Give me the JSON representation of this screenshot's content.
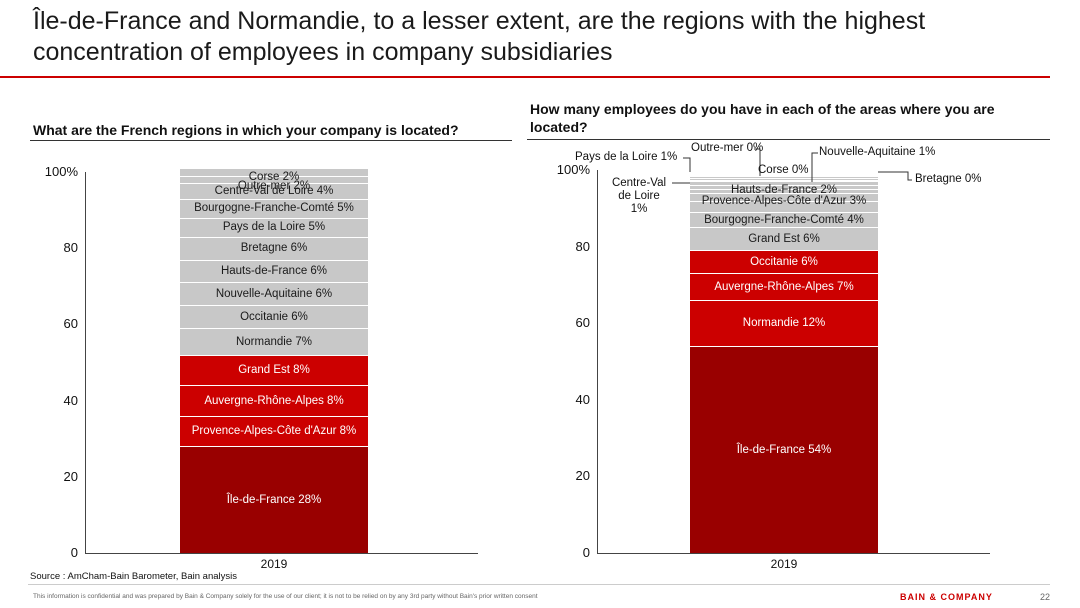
{
  "title": "Île-de-France and Normandie, to a lesser extent, are the regions with the highest concentration of employees in company subsidiaries",
  "left_question": "What are the French regions in which your company is located?",
  "right_question": "How many employees do you have in each of the areas where you are located?",
  "source": "Source : AmCham-Bain Barometer, Bain analysis",
  "disclaimer": "This information is confidential and was prepared by Bain & Company solely for the use of our client; it is not to be relied on by any 3rd party without Bain's prior written consent",
  "brand": "BAIN & COMPANY",
  "page_number": "22",
  "colors": {
    "dark_red": "#990000",
    "red": "#cc0000",
    "grey": "#c8c8c8",
    "rule_red": "#cc0000"
  },
  "chart_data": [
    {
      "type": "bar",
      "stacked": true,
      "categories": [
        "2019"
      ],
      "ylim": [
        0,
        100
      ],
      "yticks": [
        "0",
        "20",
        "40",
        "60",
        "80",
        "100%"
      ],
      "series": [
        {
          "name": "Île-de-France",
          "label": "Île-de-France 28%",
          "values": [
            28
          ],
          "color": "#990000"
        },
        {
          "name": "Provence-Alpes-Côte d'Azur",
          "label": "Provence-Alpes-Côte d'Azur 8%",
          "values": [
            8
          ],
          "color": "#cc0000"
        },
        {
          "name": "Auvergne-Rhône-Alpes",
          "label": "Auvergne-Rhône-Alpes 8%",
          "values": [
            8
          ],
          "color": "#cc0000"
        },
        {
          "name": "Grand Est",
          "label": "Grand Est 8%",
          "values": [
            8
          ],
          "color": "#cc0000"
        },
        {
          "name": "Normandie",
          "label": "Normandie 7%",
          "values": [
            7
          ],
          "color": "#c8c8c8"
        },
        {
          "name": "Occitanie",
          "label": "Occitanie 6%",
          "values": [
            6
          ],
          "color": "#c8c8c8"
        },
        {
          "name": "Nouvelle-Aquitaine",
          "label": "Nouvelle-Aquitaine 6%",
          "values": [
            6
          ],
          "color": "#c8c8c8"
        },
        {
          "name": "Hauts-de-France",
          "label": "Hauts-de-France 6%",
          "values": [
            6
          ],
          "color": "#c8c8c8"
        },
        {
          "name": "Bretagne",
          "label": "Bretagne 6%",
          "values": [
            6
          ],
          "color": "#c8c8c8"
        },
        {
          "name": "Pays de la Loire",
          "label": "Pays de la Loire 5%",
          "values": [
            5
          ],
          "color": "#c8c8c8"
        },
        {
          "name": "Bourgogne-Franche-Comté",
          "label": "Bourgogne-Franche-Comté 5%",
          "values": [
            5
          ],
          "color": "#c8c8c8"
        },
        {
          "name": "Centre-Val de Loire",
          "label": "Centre-Val de Loire 4%",
          "values": [
            4
          ],
          "color": "#c8c8c8"
        },
        {
          "name": "Outre-mer",
          "label": "Outre-mer 2%",
          "values": [
            2
          ],
          "color": "#c8c8c8"
        },
        {
          "name": "Corse",
          "label": "Corse 2%",
          "values": [
            2
          ],
          "color": "#c8c8c8"
        }
      ]
    },
    {
      "type": "bar",
      "stacked": true,
      "categories": [
        "2019"
      ],
      "ylim": [
        0,
        100
      ],
      "yticks": [
        "0",
        "20",
        "40",
        "60",
        "80",
        "100%"
      ],
      "series": [
        {
          "name": "Île-de-France",
          "label": "Île-de-France 54%",
          "values": [
            54
          ],
          "color": "#990000"
        },
        {
          "name": "Normandie",
          "label": "Normandie 12%",
          "values": [
            12
          ],
          "color": "#cc0000"
        },
        {
          "name": "Auvergne-Rhône-Alpes",
          "label": "Auvergne-Rhône-Alpes 7%",
          "values": [
            7
          ],
          "color": "#cc0000"
        },
        {
          "name": "Occitanie",
          "label": "Occitanie 6%",
          "values": [
            6
          ],
          "color": "#cc0000"
        },
        {
          "name": "Grand Est",
          "label": "Grand Est 6%",
          "values": [
            6
          ],
          "color": "#c8c8c8"
        },
        {
          "name": "Bourgogne-Franche-Comté",
          "label": "Bourgogne-Franche-Comté 4%",
          "values": [
            4
          ],
          "color": "#c8c8c8"
        },
        {
          "name": "Provence-Alpes-Côte d'Azur",
          "label": "Provence-Alpes-Côte d'Azur 3%",
          "values": [
            3
          ],
          "color": "#c8c8c8"
        },
        {
          "name": "Hauts-de-France",
          "label": "Hauts-de-France 2%",
          "values": [
            2
          ],
          "color": "#c8c8c8"
        },
        {
          "name": "Centre-Val de Loire",
          "label": "Centre-Val de Loire 1%",
          "values": [
            1
          ],
          "color": "#c8c8c8",
          "callout": true
        },
        {
          "name": "Pays de la Loire",
          "label": "Pays de la Loire 1%",
          "values": [
            1
          ],
          "color": "#c8c8c8",
          "callout": true
        },
        {
          "name": "Nouvelle-Aquitaine",
          "label": "Nouvelle-Aquitaine 1%",
          "values": [
            1
          ],
          "color": "#c8c8c8",
          "callout": true
        },
        {
          "name": "Corse",
          "label": "Corse 0%",
          "values": [
            0.5
          ],
          "color": "#c8c8c8",
          "callout": true
        },
        {
          "name": "Outre-mer",
          "label": "Outre-mer 0%",
          "values": [
            0.5
          ],
          "color": "#c8c8c8",
          "callout": true
        },
        {
          "name": "Bretagne",
          "label": "Bretagne 0%",
          "values": [
            0.5
          ],
          "color": "#c8c8c8",
          "callout": true
        }
      ]
    }
  ]
}
